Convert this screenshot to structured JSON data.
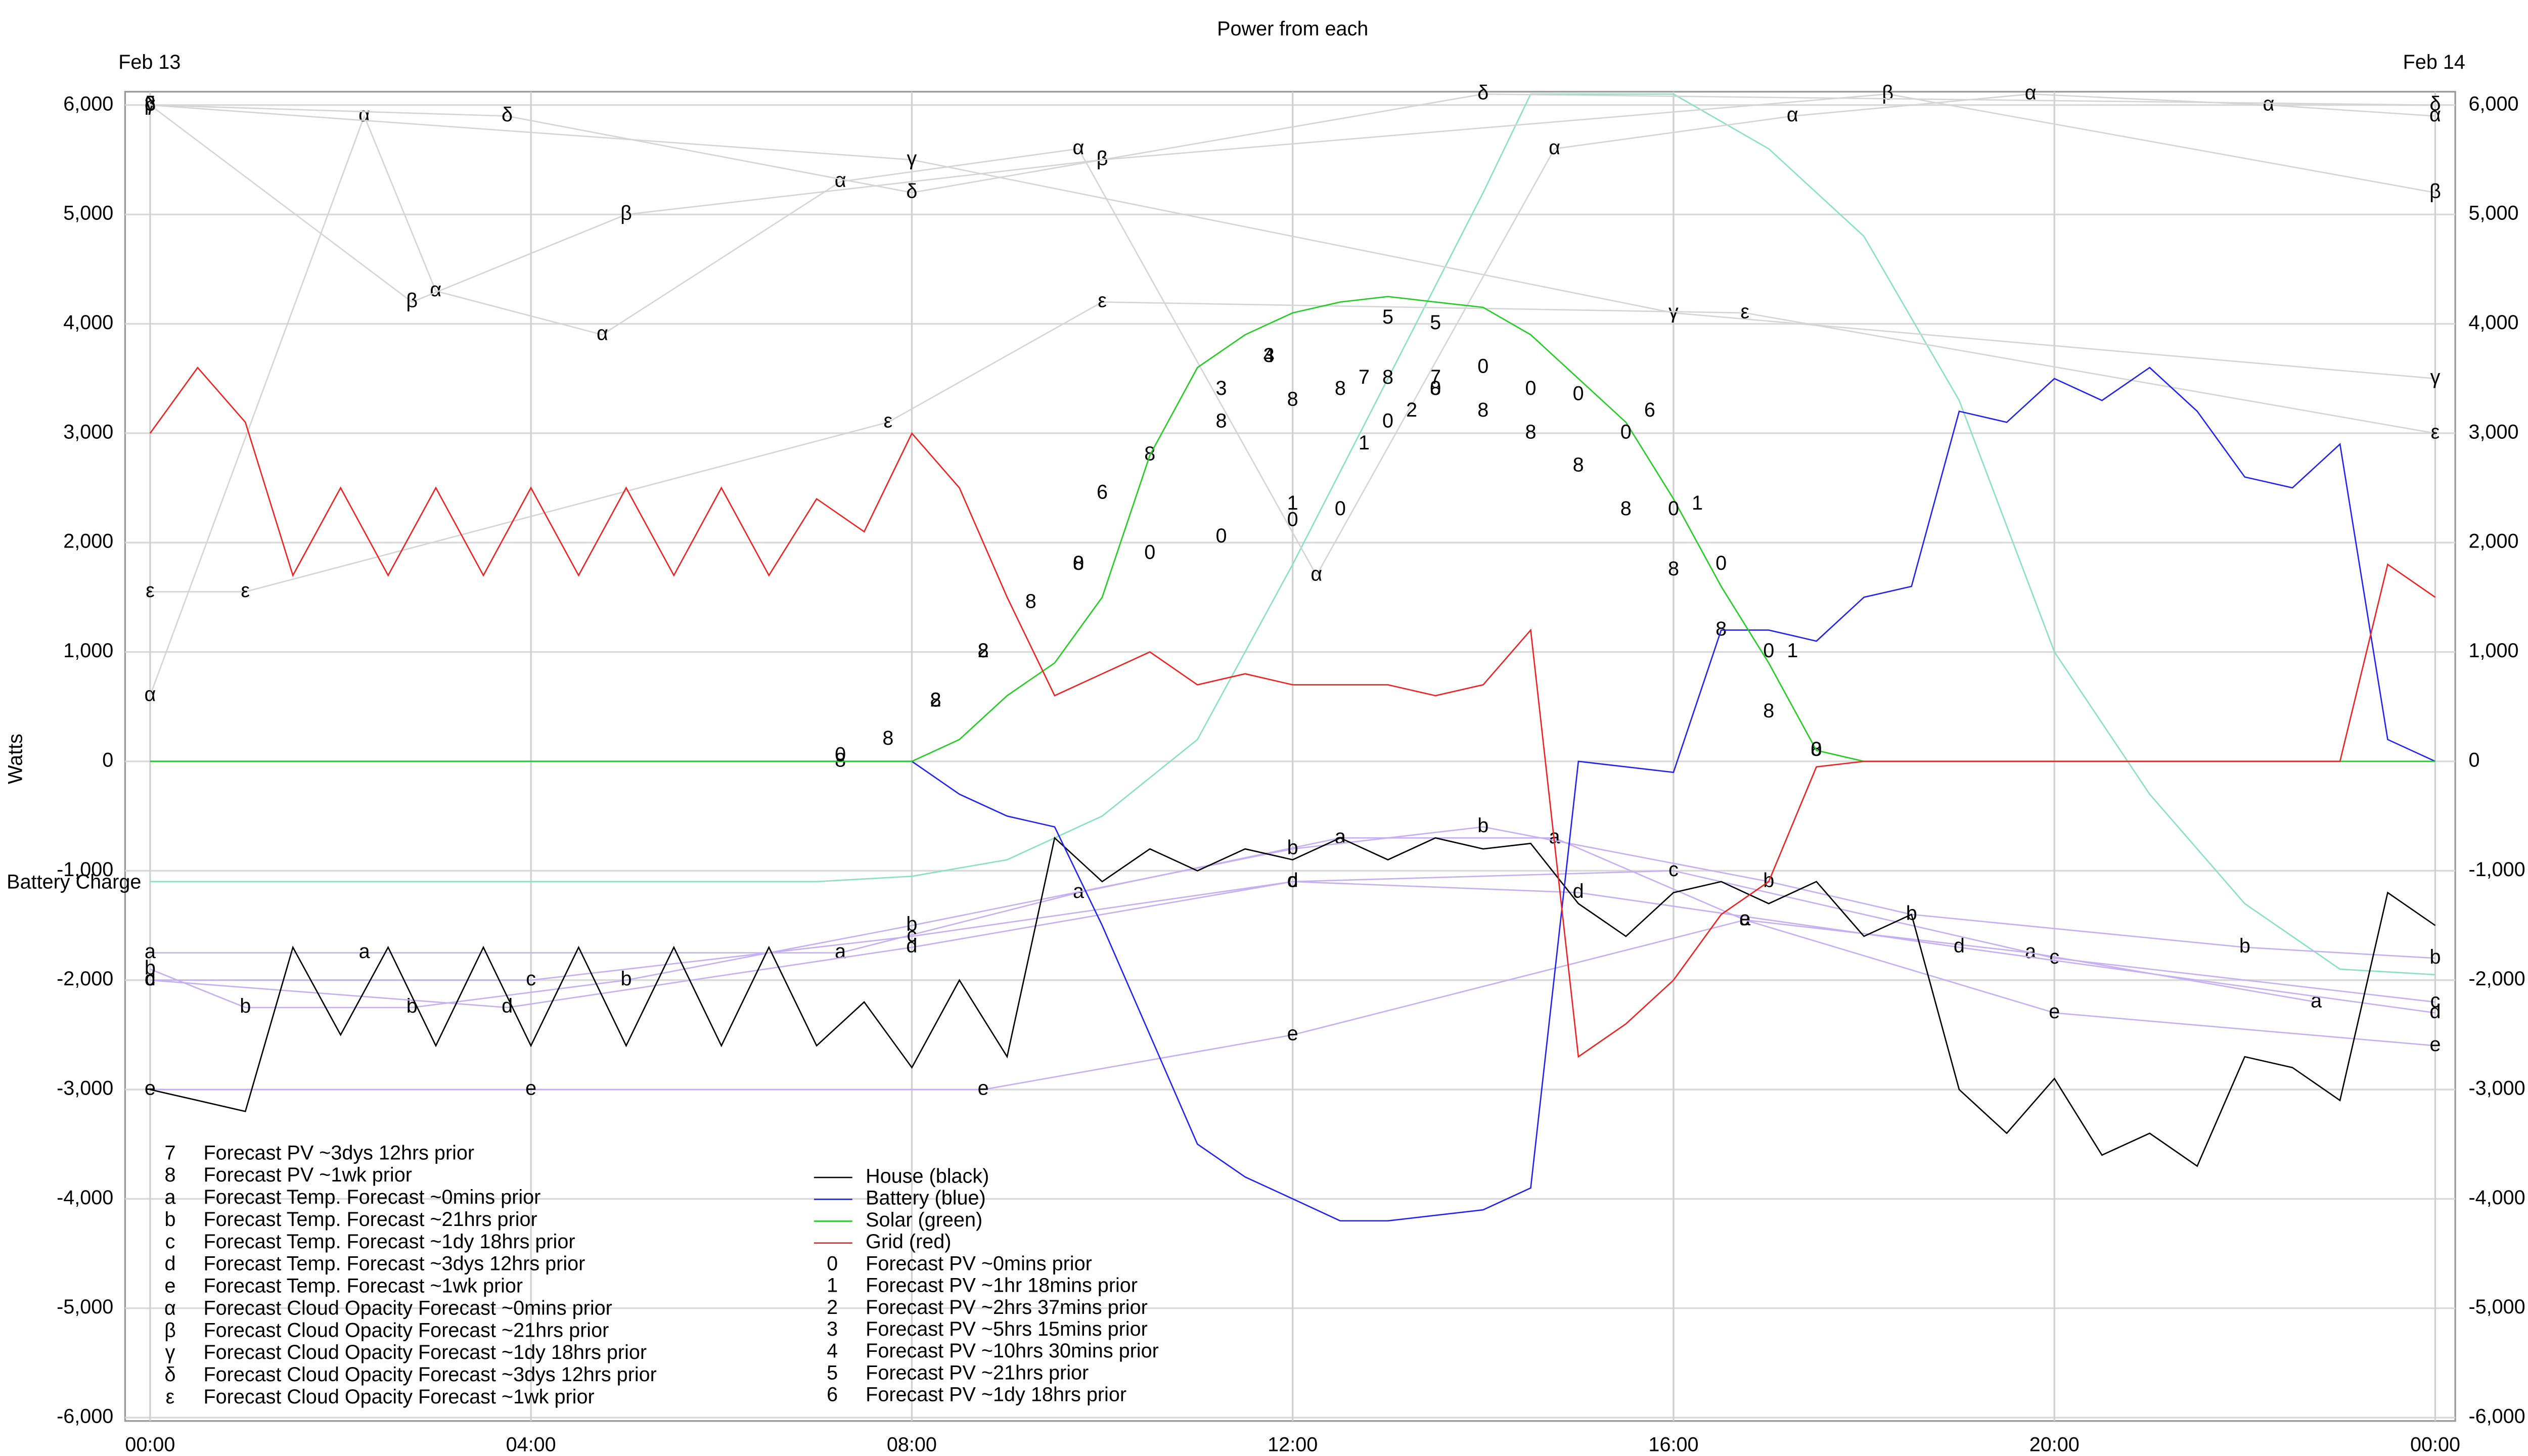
{
  "chart_data": {
    "type": "line",
    "title": "Power from each",
    "y_label": "Watts",
    "date_start": "Feb 13",
    "date_end": "Feb 14",
    "xlim": [
      0,
      24
    ],
    "xticks": [
      {
        "value": 0,
        "label": "00:00"
      },
      {
        "value": 4,
        "label": "04:00"
      },
      {
        "value": 8,
        "label": "08:00"
      },
      {
        "value": 12,
        "label": "12:00"
      },
      {
        "value": 16,
        "label": "16:00"
      },
      {
        "value": 20,
        "label": "20:00"
      },
      {
        "value": 24,
        "label": "00:00"
      }
    ],
    "ylim": [
      -6000,
      6000
    ],
    "yticks": [
      {
        "value": -6000,
        "label": "-6,000"
      },
      {
        "value": -5000,
        "label": "-5,000"
      },
      {
        "value": -4000,
        "label": "-4,000"
      },
      {
        "value": -3000,
        "label": "-3,000"
      },
      {
        "value": -2000,
        "label": "-2,000"
      },
      {
        "value": -1000,
        "label": "-1,000"
      },
      0,
      {
        "value": 1000,
        "label": "1,000"
      },
      {
        "value": 2000,
        "label": "2,000"
      },
      {
        "value": 3000,
        "label": "3,000"
      },
      {
        "value": 4000,
        "label": "4,000"
      },
      {
        "value": 5000,
        "label": "5,000"
      },
      {
        "value": 6000,
        "label": "6,000"
      }
    ],
    "grid": true,
    "battery_charge": {
      "label": "Battery Charge",
      "color": "#88e0c4",
      "x": [
        0,
        1,
        4,
        7,
        8,
        9,
        10,
        11,
        12,
        13,
        14,
        14.5,
        16,
        17,
        18,
        19,
        20,
        21,
        22,
        23,
        24
      ],
      "values": [
        -1100,
        -1100,
        -1100,
        -1100,
        -1050,
        -900,
        -500,
        200,
        1800,
        3500,
        5200,
        6100,
        6100,
        5600,
        4800,
        3300,
        1000,
        -300,
        -1300,
        -1900,
        -1950
      ]
    },
    "series": [
      {
        "name": "Forecast PV ~3dys 12hrs prior",
        "symbol": "7",
        "style": "markers",
        "color": "#000000",
        "x": [
          12.75,
          13.5
        ],
        "values": [
          3500,
          3500
        ]
      },
      {
        "name": "Forecast PV ~1wk prior",
        "symbol": "8",
        "style": "markers",
        "color": "#000000",
        "x": [
          7.25,
          7.75,
          8.25,
          8.75,
          9.25,
          9.75,
          10.5,
          11.25,
          12,
          12.5,
          13,
          13.5,
          14,
          14.5,
          15,
          15.5,
          16,
          16.5,
          17,
          17.5
        ],
        "values": [
          0,
          200,
          550,
          1000,
          1450,
          1800,
          2800,
          3100,
          3300,
          3400,
          3500,
          3400,
          3200,
          3000,
          2700,
          2300,
          1750,
          1200,
          450,
          100
        ]
      },
      {
        "name": "Forecast Temp. Forecast ~0mins prior",
        "symbol": "a",
        "style": "line+markers",
        "color": "#c6aef2",
        "x": [
          0,
          2.25,
          7.25,
          9.75,
          12.5,
          14.75,
          16.75,
          19.75,
          22.75
        ],
        "values": [
          -1750,
          -1750,
          -1750,
          -1200,
          -700,
          -700,
          -1450,
          -1750,
          -2200
        ]
      },
      {
        "name": "Forecast Temp. Forecast ~21hrs prior",
        "symbol": "b",
        "style": "line+markers",
        "color": "#c6aef2",
        "x": [
          0,
          1,
          2.75,
          5,
          8,
          12,
          14,
          17,
          18.5,
          22,
          24
        ],
        "values": [
          -1900,
          -2250,
          -2250,
          -2000,
          -1500,
          -800,
          -600,
          -1100,
          -1400,
          -1700,
          -1800
        ]
      },
      {
        "name": "Forecast Temp. Forecast ~1dy 18hrs prior",
        "symbol": "c",
        "style": "line+markers",
        "color": "#c6aef2",
        "x": [
          0,
          4,
          8,
          12,
          16,
          20,
          24
        ],
        "values": [
          -2000,
          -2000,
          -1600,
          -1100,
          -1000,
          -1800,
          -2200
        ]
      },
      {
        "name": "Forecast Temp. Forecast ~3dys 12hrs prior",
        "symbol": "d",
        "style": "line+markers",
        "color": "#c6aef2",
        "x": [
          0,
          3.75,
          8,
          12,
          15,
          19,
          24
        ],
        "values": [
          -2000,
          -2250,
          -1700,
          -1100,
          -1200,
          -1700,
          -2300
        ]
      },
      {
        "name": "Forecast Temp. Forecast ~1wk prior",
        "symbol": "e",
        "style": "line+markers",
        "color": "#c6aef2",
        "x": [
          0,
          4,
          8.75,
          12,
          16.75,
          20,
          24
        ],
        "values": [
          -3000,
          -3000,
          -3000,
          -2500,
          -1450,
          -2300,
          -2600
        ]
      },
      {
        "name": "Forecast Cloud Opacity Forecast ~0mins prior",
        "symbol": "α",
        "style": "line+markers",
        "color": "#d4d4d4",
        "x": [
          0,
          2.25,
          3,
          4.75,
          7.25,
          9.75,
          12.25,
          14.75,
          17.25,
          19.75,
          22.25,
          24
        ],
        "values": [
          600,
          5900,
          4300,
          3900,
          5300,
          5600,
          1700,
          5600,
          5900,
          6100,
          6000,
          5900
        ]
      },
      {
        "name": "Forecast Cloud Opacity Forecast ~21hrs prior",
        "symbol": "β",
        "style": "line+markers",
        "color": "#d4d4d4",
        "x": [
          0,
          2.75,
          5,
          10,
          18.25,
          24
        ],
        "values": [
          6000,
          4200,
          5000,
          5500,
          6100,
          5200
        ]
      },
      {
        "name": "Forecast Cloud Opacity Forecast ~1dy 18hrs prior",
        "symbol": "γ",
        "style": "line+markers",
        "color": "#d4d4d4",
        "x": [
          0,
          8,
          16,
          24
        ],
        "values": [
          6000,
          5500,
          4100,
          3500
        ]
      },
      {
        "name": "Forecast Cloud Opacity Forecast ~3dys 12hrs prior",
        "symbol": "δ",
        "style": "line+markers",
        "color": "#d4d4d4",
        "x": [
          0,
          3.75,
          8,
          14,
          24
        ],
        "values": [
          6000,
          5900,
          5200,
          6100,
          6000
        ]
      },
      {
        "name": "Forecast Cloud Opacity Forecast ~1wk prior",
        "symbol": "ε",
        "style": "line+markers",
        "color": "#d4d4d4",
        "x": [
          0,
          1,
          7.75,
          10,
          16.75,
          24
        ],
        "values": [
          1550,
          1550,
          3100,
          4200,
          4100,
          3000
        ]
      },
      {
        "name": "House (black)",
        "style": "line",
        "color": "#000000",
        "x": [
          0,
          0.5,
          1,
          1.5,
          2,
          2.5,
          3,
          3.5,
          4,
          4.5,
          5,
          5.5,
          6,
          6.5,
          7,
          7.5,
          8,
          8.5,
          9,
          9.5,
          10,
          10.5,
          11,
          11.5,
          12,
          12.5,
          13,
          13.5,
          14,
          14.5,
          15,
          15.5,
          16,
          16.5,
          17,
          17.5,
          18,
          18.5,
          19,
          19.5,
          20,
          20.5,
          21,
          21.5,
          22,
          22.5,
          23,
          23.5,
          24
        ],
        "values": [
          -3000,
          -3100,
          -3200,
          -1700,
          -2500,
          -1700,
          -2600,
          -1700,
          -2600,
          -1700,
          -2600,
          -1700,
          -2600,
          -1700,
          -2600,
          -2200,
          -2800,
          -2000,
          -2700,
          -700,
          -1100,
          -800,
          -1000,
          -800,
          -900,
          -700,
          -900,
          -700,
          -800,
          -750,
          -1300,
          -1600,
          -1200,
          -1100,
          -1300,
          -1100,
          -1600,
          -1400,
          -3000,
          -3400,
          -2900,
          -3600,
          -3400,
          -3700,
          -2700,
          -2800,
          -3100,
          -1200,
          -1500
        ]
      },
      {
        "name": "Battery (blue)",
        "style": "line",
        "color": "#2222ee",
        "x": [
          0,
          0.5,
          1,
          1.5,
          2,
          2.5,
          3,
          3.5,
          4,
          4.5,
          5,
          5.5,
          6,
          6.5,
          7,
          7.5,
          8,
          8.5,
          9,
          9.5,
          10,
          10.5,
          11,
          11.5,
          12,
          12.5,
          13,
          13.5,
          14,
          14.5,
          15,
          15.5,
          16,
          16.5,
          17,
          17.5,
          18,
          18.5,
          19,
          19.5,
          20,
          20.5,
          21,
          21.5,
          22,
          22.5,
          23,
          23.5,
          24
        ],
        "values": [
          0,
          0,
          0,
          0,
          0,
          0,
          0,
          0,
          0,
          0,
          0,
          0,
          0,
          0,
          0,
          0,
          0,
          -300,
          -500,
          -600,
          -1500,
          -2500,
          -3500,
          -3800,
          -4000,
          -4200,
          -4200,
          -4150,
          -4100,
          -3900,
          0,
          -50,
          -100,
          1200,
          1200,
          1100,
          1500,
          1600,
          3200,
          3100,
          3500,
          3300,
          3600,
          3200,
          2600,
          2500,
          2900,
          200,
          0
        ]
      },
      {
        "name": "Solar (green)",
        "style": "line",
        "color": "#22cc22",
        "x": [
          0,
          0.5,
          1,
          1.5,
          2,
          2.5,
          3,
          3.5,
          4,
          4.5,
          5,
          5.5,
          6,
          6.5,
          7,
          7.5,
          8,
          8.5,
          9,
          9.5,
          10,
          10.5,
          11,
          11.5,
          12,
          12.5,
          13,
          13.5,
          14,
          14.5,
          15,
          15.5,
          16,
          16.5,
          17,
          17.5,
          18,
          18.5,
          19,
          19.5,
          20,
          20.5,
          21,
          21.5,
          22,
          22.5,
          23,
          23.5,
          24
        ],
        "values": [
          0,
          0,
          0,
          0,
          0,
          0,
          0,
          0,
          0,
          0,
          0,
          0,
          0,
          0,
          0,
          0,
          0,
          200,
          600,
          900,
          1500,
          2800,
          3600,
          3900,
          4100,
          4200,
          4250,
          4200,
          4150,
          3900,
          3500,
          3100,
          2400,
          1600,
          900,
          100,
          0,
          0,
          0,
          0,
          0,
          0,
          0,
          0,
          0,
          0,
          0,
          0,
          0
        ]
      },
      {
        "name": "Grid (red)",
        "style": "line",
        "color": "#ee2222",
        "x": [
          0,
          0.5,
          1,
          1.5,
          2,
          2.5,
          3,
          3.5,
          4,
          4.5,
          5,
          5.5,
          6,
          6.5,
          7,
          7.5,
          8,
          8.5,
          9,
          9.5,
          10,
          10.5,
          11,
          11.5,
          12,
          12.5,
          13,
          13.5,
          14,
          14.5,
          15,
          15.5,
          16,
          16.5,
          17,
          17.5,
          18,
          18.5,
          19,
          19.5,
          20,
          20.5,
          21,
          21.5,
          22,
          22.5,
          23,
          23.5,
          24
        ],
        "values": [
          3000,
          3600,
          3100,
          1700,
          2500,
          1700,
          2500,
          1700,
          2500,
          1700,
          2500,
          1700,
          2500,
          1700,
          2400,
          2100,
          3000,
          2500,
          1500,
          600,
          800,
          1000,
          700,
          800,
          700,
          700,
          700,
          600,
          700,
          1200,
          -2700,
          -2400,
          -2000,
          -1400,
          -1100,
          -50,
          0,
          0,
          0,
          0,
          0,
          0,
          0,
          0,
          0,
          0,
          0,
          1800,
          1500
        ]
      },
      {
        "name": "Forecast PV ~0mins prior",
        "symbol": "0",
        "style": "markers",
        "color": "#000000",
        "x": [
          7.25,
          9.75,
          10.5,
          11.25,
          12,
          12.5,
          13,
          13.5,
          14,
          14.5,
          15,
          15.5,
          16,
          16.5,
          17,
          17.5
        ],
        "values": [
          50,
          1800,
          1900,
          2050,
          2200,
          2300,
          3100,
          3400,
          3600,
          3400,
          3350,
          3000,
          2300,
          1800,
          1000,
          100
        ]
      },
      {
        "name": "Forecast PV ~1hr 18mins prior",
        "symbol": "1",
        "style": "markers",
        "color": "#000000",
        "x": [
          12,
          12.75,
          16.25,
          17.25
        ],
        "values": [
          2350,
          2900,
          2350,
          1000
        ]
      },
      {
        "name": "Forecast PV ~2hrs 37mins prior",
        "symbol": "2",
        "style": "markers",
        "color": "#000000",
        "x": [
          8.25,
          8.75,
          13.25
        ],
        "values": [
          550,
          1000,
          3200
        ]
      },
      {
        "name": "Forecast PV ~5hrs 15mins prior",
        "symbol": "3",
        "style": "markers",
        "color": "#000000",
        "x": [
          11.25,
          11.75
        ],
        "values": [
          3400,
          3700
        ]
      },
      {
        "name": "Forecast PV ~10hrs 30mins prior",
        "symbol": "4",
        "style": "markers",
        "color": "#000000",
        "x": [
          11.75
        ],
        "values": [
          3700
        ]
      },
      {
        "name": "Forecast PV ~21hrs prior",
        "symbol": "5",
        "style": "markers",
        "color": "#000000",
        "x": [
          13,
          13.5
        ],
        "values": [
          4050,
          4000
        ]
      },
      {
        "name": "Forecast PV ~1dy 18hrs prior",
        "symbol": "6",
        "style": "markers",
        "color": "#000000",
        "x": [
          10,
          15.75
        ],
        "values": [
          2450,
          3200
        ]
      }
    ]
  }
}
